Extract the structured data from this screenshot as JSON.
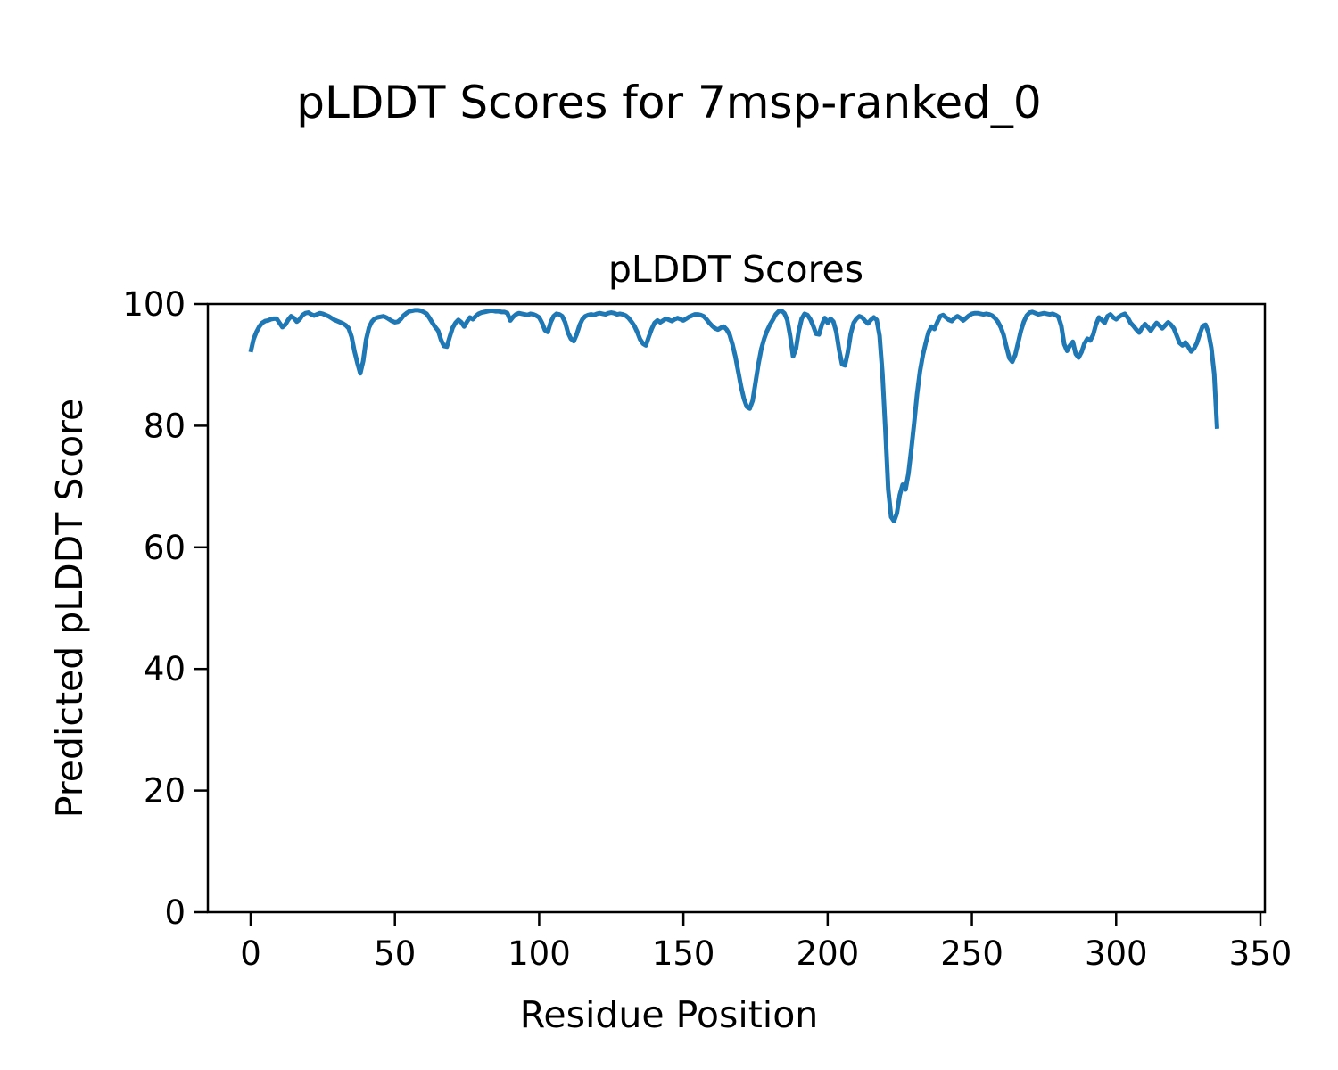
{
  "figure": {
    "suptitle": "pLDDT Scores for 7msp-ranked_0",
    "background_color": "#ffffff",
    "text_color": "#000000"
  },
  "chart_data": {
    "type": "line",
    "title": "pLDDT Scores",
    "xlabel": "Residue Position",
    "ylabel": "Predicted pLDDT Score",
    "xlim": [
      -14.84,
      351.55
    ],
    "ylim": [
      0,
      100
    ],
    "xticks": [
      0,
      50,
      100,
      150,
      200,
      250,
      300,
      350
    ],
    "yticks": [
      0,
      20,
      40,
      60,
      80,
      100
    ],
    "grid": false,
    "legend": null,
    "line_color": "#1f77b4",
    "line_width": 5,
    "series": [
      {
        "name": "pLDDT",
        "x_start": 0,
        "x_step": 1,
        "y": [
          92.1,
          94.2,
          95.4,
          96.3,
          96.9,
          97.2,
          97.3,
          97.5,
          97.6,
          97.6,
          96.9,
          96.2,
          96.6,
          97.4,
          98.0,
          97.7,
          97.1,
          97.5,
          98.2,
          98.5,
          98.6,
          98.3,
          98.1,
          98.3,
          98.5,
          98.4,
          98.2,
          98.0,
          97.7,
          97.4,
          97.2,
          97.0,
          96.8,
          96.5,
          96.0,
          94.6,
          92.2,
          90.3,
          88.6,
          90.6,
          94.1,
          96.1,
          97.1,
          97.6,
          97.8,
          97.9,
          98.0,
          97.8,
          97.5,
          97.2,
          97.0,
          97.1,
          97.5,
          98.1,
          98.5,
          98.8,
          98.9,
          99.0,
          99.0,
          98.9,
          98.7,
          98.4,
          97.7,
          96.9,
          96.2,
          95.6,
          94.1,
          93.1,
          93.0,
          94.6,
          96.1,
          96.9,
          97.4,
          97.0,
          96.3,
          97.1,
          97.8,
          97.5,
          98.0,
          98.4,
          98.6,
          98.7,
          98.8,
          98.9,
          98.9,
          98.8,
          98.8,
          98.7,
          98.7,
          98.5,
          97.3,
          97.9,
          98.3,
          98.5,
          98.4,
          98.3,
          98.2,
          98.4,
          98.3,
          98.1,
          97.8,
          96.9,
          95.7,
          95.4,
          97.0,
          98.0,
          98.4,
          98.3,
          98.0,
          97.0,
          95.3,
          94.3,
          93.9,
          95.0,
          96.5,
          97.5,
          98.0,
          98.2,
          98.3,
          98.2,
          98.4,
          98.5,
          98.4,
          98.3,
          98.5,
          98.6,
          98.5,
          98.3,
          98.4,
          98.3,
          98.1,
          97.7,
          97.1,
          96.4,
          95.4,
          94.2,
          93.5,
          93.2,
          94.6,
          95.9,
          96.9,
          97.3,
          97.0,
          97.3,
          97.6,
          97.4,
          97.2,
          97.5,
          97.7,
          97.5,
          97.3,
          97.6,
          97.9,
          98.1,
          98.3,
          98.3,
          98.2,
          98.0,
          97.5,
          96.9,
          96.4,
          96.0,
          95.8,
          96.1,
          96.3,
          95.8,
          95.0,
          93.4,
          91.4,
          88.9,
          86.4,
          84.4,
          83.1,
          82.8,
          84.1,
          87.1,
          90.1,
          92.6,
          94.3,
          95.6,
          96.6,
          97.4,
          98.3,
          98.8,
          98.9,
          98.5,
          97.4,
          94.8,
          91.4,
          92.6,
          95.6,
          97.6,
          98.4,
          98.2,
          97.5,
          96.4,
          95.1,
          95.0,
          96.6,
          97.7,
          96.9,
          97.6,
          97.1,
          95.4,
          92.4,
          90.1,
          89.9,
          92.1,
          95.1,
          96.9,
          97.6,
          98.0,
          97.8,
          97.2,
          96.8,
          97.4,
          97.8,
          97.4,
          94.8,
          88.5,
          79.5,
          69.5,
          65.0,
          64.3,
          65.6,
          68.6,
          70.3,
          69.5,
          72.1,
          76.1,
          80.5,
          85.2,
          88.9,
          91.6,
          93.6,
          95.4,
          96.3,
          95.9,
          97.0,
          98.0,
          98.2,
          97.8,
          97.4,
          97.2,
          97.7,
          98.0,
          97.7,
          97.3,
          97.7,
          98.1,
          98.4,
          98.5,
          98.5,
          98.4,
          98.3,
          98.4,
          98.3,
          98.1,
          97.7,
          97.1,
          96.2,
          94.9,
          92.9,
          91.1,
          90.5,
          91.6,
          93.6,
          95.6,
          97.1,
          98.1,
          98.6,
          98.7,
          98.5,
          98.3,
          98.4,
          98.5,
          98.4,
          98.3,
          98.4,
          98.2,
          97.9,
          96.4,
          93.4,
          92.3,
          93.2,
          93.8,
          91.8,
          91.2,
          92.1,
          93.5,
          94.3,
          94.0,
          94.9,
          96.6,
          97.8,
          97.4,
          96.9,
          98.0,
          98.3,
          97.8,
          97.5,
          97.9,
          98.2,
          98.4,
          97.8,
          96.9,
          96.4,
          95.8,
          95.3,
          96.1,
          96.7,
          96.2,
          95.6,
          96.3,
          96.9,
          96.5,
          96.0,
          96.5,
          97.0,
          96.6,
          96.0,
          94.8,
          93.6,
          93.2,
          93.7,
          93.0,
          92.2,
          92.7,
          93.6,
          95.1,
          96.4,
          96.6,
          95.3,
          92.8,
          88.5,
          79.5
        ]
      }
    ]
  }
}
